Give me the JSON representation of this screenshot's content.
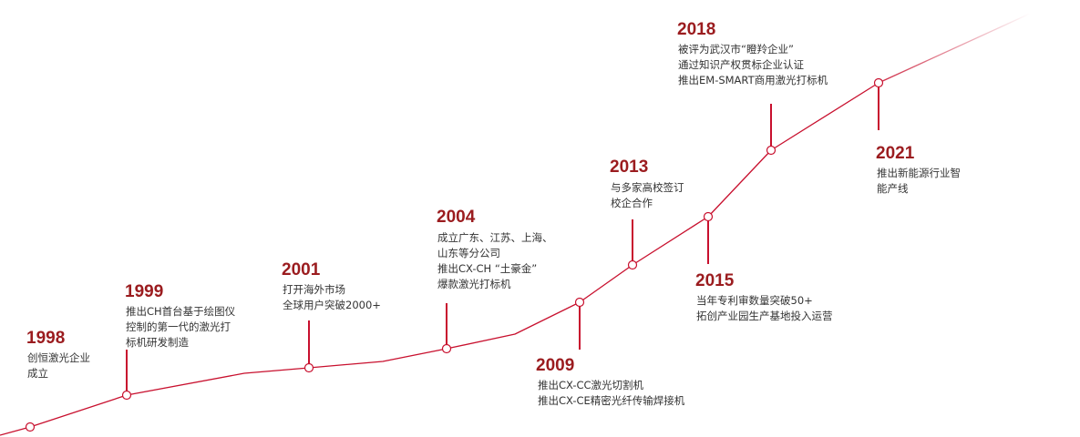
{
  "colors": {
    "accent": "#c8102e",
    "year_text": "#9b1c1f",
    "body_text": "#333333",
    "background": "#ffffff"
  },
  "milestones": [
    {
      "year": "1998",
      "lines": [
        "创恒激光企业",
        "成立"
      ]
    },
    {
      "year": "1999",
      "lines": [
        "推出CH首台基于绘图仪",
        "控制的第一代的激光打",
        "标机研发制造"
      ]
    },
    {
      "year": "2001",
      "lines": [
        "打开海外市场",
        "全球用户突破2000+"
      ]
    },
    {
      "year": "2004",
      "lines": [
        "成立广东、江苏、上海、",
        "山东等分公司",
        "推出CX-CH “土豪金”",
        "爆款激光打标机"
      ]
    },
    {
      "year": "2009",
      "lines": [
        "推出CX-CC激光切割机",
        "推出CX-CE精密光纤传输焊接机"
      ]
    },
    {
      "year": "2013",
      "lines": [
        "与多家高校签订",
        "校企合作"
      ]
    },
    {
      "year": "2015",
      "lines": [
        "当年专利审数量突破50+",
        "拓创产业园生产基地投入运营"
      ]
    },
    {
      "year": "2018",
      "lines": [
        "被评为武汉市“瞪羚企业”",
        "通过知识产权贯标企业认证",
        "推出EM-SMART商用激光打标机"
      ]
    },
    {
      "year": "2021",
      "lines": [
        "推出新能源行业智",
        "能产线"
      ]
    }
  ]
}
